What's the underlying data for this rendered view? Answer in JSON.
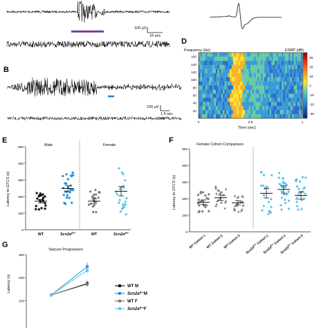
{
  "panels": {
    "A": {
      "scale_v": "100 µV",
      "scale_t": "15 sec",
      "bar_color": "#7b3fa0"
    },
    "B": {
      "label": "B",
      "scale_v": "100 µV",
      "scale_t": "1.5 sec",
      "bar_color": "#2a7fc1"
    },
    "D": {
      "label": "D",
      "ylabel": "Frequency (Hz)",
      "xlabel": "Time (sec)",
      "cbar_label": "ESRP (dB)",
      "yticks": [
        20,
        40,
        60,
        80,
        100,
        120,
        140,
        160
      ],
      "xticks": [
        0,
        0.5,
        1
      ],
      "xtick_labels": [
        "0",
        "0.5",
        "1"
      ],
      "cbar_ticks": [
        30,
        20,
        10,
        0,
        -10,
        -20,
        -30
      ]
    },
    "E": {
      "label": "E",
      "ylabel": "Latency to GTCS (s)",
      "group_male": "Male",
      "group_female": "Female",
      "cat_wt": "WT",
      "cat_mut": "Scn2a",
      "cat_mut_sup": "E/+",
      "yticks": [
        0,
        100,
        200,
        300,
        400,
        500
      ]
    },
    "F": {
      "label": "F",
      "title": "Female Cohort Comparison",
      "ylabel": "Latency to GTCS (s)",
      "yticks": [
        0,
        100,
        200,
        300,
        400,
        500
      ],
      "wt_labels": [
        "WT Cohort 1",
        "WT Cohort 2",
        "WT Cohort 3"
      ],
      "mut_prefix": "Scn2a",
      "mut_sup": "E/+",
      "mut_suffixes": [
        " Cohort 1",
        " Cohort 2",
        " Cohort 3"
      ]
    },
    "G": {
      "label": "G",
      "title": "Seizure Progression",
      "ylabel": "Latency (s)",
      "yticks": [
        100,
        200,
        300
      ],
      "legend": [
        {
          "prefix": "WT M",
          "sup": "",
          "suffix": ""
        },
        {
          "prefix": "Scn2a",
          "sup": "E/+",
          "suffix": "M"
        },
        {
          "prefix": "WT F",
          "sup": "",
          "suffix": ""
        },
        {
          "prefix": "Scn2a",
          "sup": "E/+",
          "suffix": "F"
        }
      ]
    }
  },
  "chart_data": [
    {
      "panel": "E",
      "type": "scatter",
      "ylabel": "Latency to GTCS (s)",
      "ylim": [
        0,
        500
      ],
      "categories": [
        "WT (Male)",
        "Scn2a E/+ (Male)",
        "WT (Female)",
        "Scn2a E/+ (Female)"
      ],
      "means": [
        172,
        248,
        172,
        232
      ],
      "sem": [
        10,
        18,
        14,
        28
      ],
      "colors": [
        "#111111",
        "#2a8fd8",
        "#7a7a7a",
        "#5ec2ec"
      ]
    },
    {
      "panel": "F",
      "type": "scatter",
      "title": "Female Cohort Comparison",
      "ylabel": "Latency to GTCS (s)",
      "ylim": [
        0,
        500
      ],
      "categories": [
        "WT Cohort 1",
        "WT Cohort 2",
        "WT Cohort 3",
        "Scn2a E/+ Cohort 1",
        "Scn2a E/+ Cohort 2",
        "Scn2a E/+ Cohort 3"
      ],
      "means": [
        178,
        205,
        175,
        232,
        255,
        218
      ],
      "sem": [
        14,
        16,
        13,
        28,
        22,
        22
      ],
      "colors": [
        "#7a7a7a",
        "#7a7a7a",
        "#7a7a7a",
        "#5ec2ec",
        "#5ec2ec",
        "#5ec2ec"
      ]
    },
    {
      "panel": "G",
      "type": "line",
      "title": "Seizure Progression",
      "ylabel": "Latency (s)",
      "ylim": [
        0,
        300
      ],
      "x": [
        1,
        2
      ],
      "series": [
        {
          "name": "WT M",
          "values": [
            125,
            175
          ],
          "sem": [
            5,
            12
          ],
          "color": "#111111"
        },
        {
          "name": "Scn2a E/+ M",
          "values": [
            125,
            248
          ],
          "sem": [
            5,
            18
          ],
          "color": "#2a8fd8"
        },
        {
          "name": "WT F",
          "values": [
            125,
            172
          ],
          "sem": [
            5,
            10
          ],
          "color": "#7a7a7a"
        },
        {
          "name": "Scn2a E/+ F",
          "values": [
            125,
            232
          ],
          "sem": [
            5,
            14
          ],
          "color": "#5ec2ec"
        }
      ]
    }
  ]
}
